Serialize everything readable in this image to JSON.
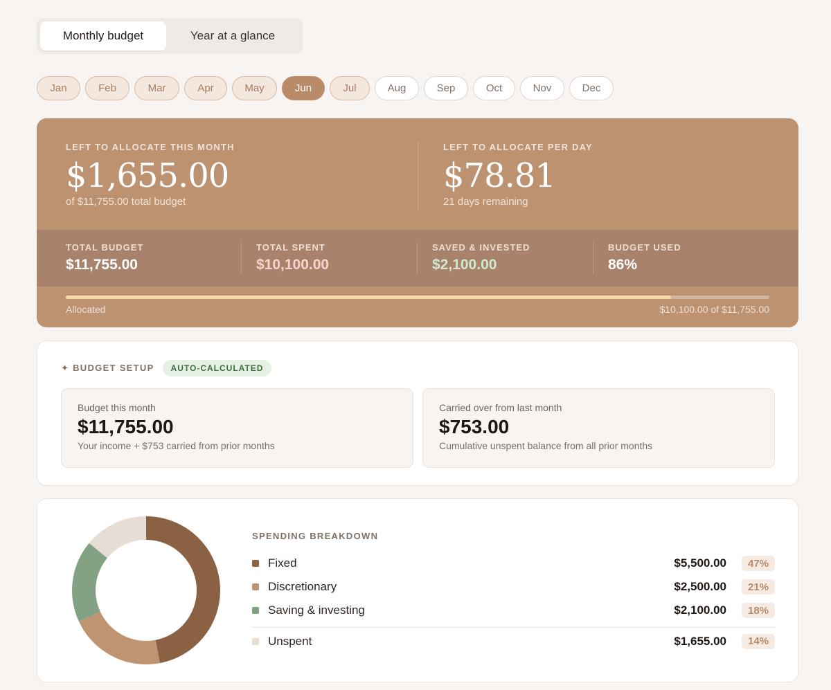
{
  "view_toggle": {
    "tabs": [
      {
        "label": "Monthly budget",
        "active": true
      },
      {
        "label": "Year at a glance",
        "active": false
      }
    ]
  },
  "months": [
    {
      "label": "Jan",
      "state": "past"
    },
    {
      "label": "Feb",
      "state": "past"
    },
    {
      "label": "Mar",
      "state": "past"
    },
    {
      "label": "Apr",
      "state": "past"
    },
    {
      "label": "May",
      "state": "past"
    },
    {
      "label": "Jun",
      "state": "current"
    },
    {
      "label": "Jul",
      "state": "past"
    },
    {
      "label": "Aug",
      "state": "future"
    },
    {
      "label": "Sep",
      "state": "future"
    },
    {
      "label": "Oct",
      "state": "future"
    },
    {
      "label": "Nov",
      "state": "future"
    },
    {
      "label": "Dec",
      "state": "future"
    }
  ],
  "summary": {
    "month": {
      "label": "LEFT TO ALLOCATE THIS MONTH",
      "value": "$1,655.00",
      "sub": "of $11,755.00 total budget"
    },
    "day": {
      "label": "LEFT TO ALLOCATE PER DAY",
      "value": "$78.81",
      "sub": "21 days remaining"
    },
    "stats": {
      "total_budget": {
        "label": "TOTAL BUDGET",
        "value": "$11,755.00"
      },
      "total_spent": {
        "label": "TOTAL SPENT",
        "value": "$10,100.00"
      },
      "saved": {
        "label": "SAVED & INVESTED",
        "value": "$2,100.00"
      },
      "used": {
        "label": "BUDGET USED",
        "value": "86%"
      }
    },
    "progress": {
      "left_label": "Allocated",
      "right_label": "$10,100.00 of $11,755.00",
      "fraction": 0.86
    }
  },
  "setup": {
    "title": "✦ BUDGET SETUP",
    "badge": "AUTO-CALCULATED",
    "budget": {
      "label": "Budget this month",
      "value": "$11,755.00",
      "sub": "Your income + $753 carried from prior months"
    },
    "carried": {
      "label": "Carried over from last month",
      "value": "$753.00",
      "sub": "Cumulative unspent balance from all prior months"
    }
  },
  "breakdown": {
    "title": "SPENDING BREAKDOWN",
    "items": [
      {
        "name": "Fixed",
        "amount": "$5,500.00",
        "pct": "47%",
        "color": "#8a6142"
      },
      {
        "name": "Discretionary",
        "amount": "$2,500.00",
        "pct": "21%",
        "color": "#be9472"
      },
      {
        "name": "Saving & investing",
        "amount": "$2,100.00",
        "pct": "18%",
        "color": "#83a183"
      }
    ],
    "unspent": {
      "name": "Unspent",
      "amount": "$1,655.00",
      "pct": "14%",
      "color": "#e6ddd5"
    }
  },
  "colors": {
    "accent": "#bd9271",
    "background": "#f8f4f1"
  }
}
